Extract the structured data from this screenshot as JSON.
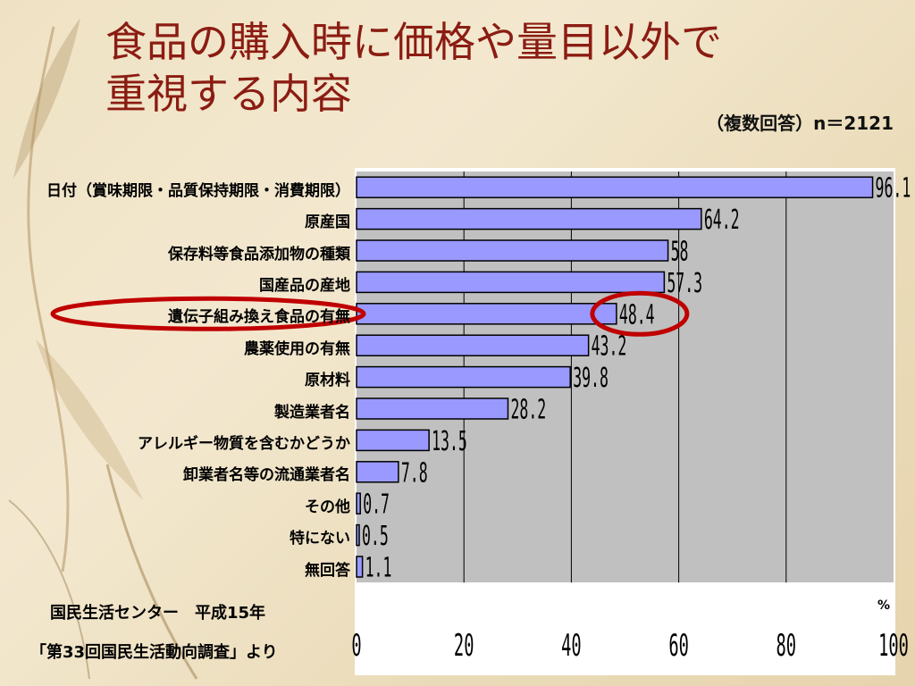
{
  "slide": {
    "title_line1": "食品の購入時に価格や量目以外で",
    "title_line2": "重視する内容",
    "note": "（複数回答）n＝2121",
    "source_line1": "国民生活センター　平成15年",
    "source_line2": "「第33回国民生活動向調査」より"
  },
  "chart_data": {
    "type": "bar",
    "orientation": "horizontal",
    "categories": [
      "日付（賞味期限・品質保持期限・消費期限）",
      "原産国",
      "保存料等食品添加物の種類",
      "国産品の産地",
      "遺伝子組み換え食品の有無",
      "農薬使用の有無",
      "原材料",
      "製造業者名",
      "アレルギー物質を含むかどうか",
      "卸業者名等の流通業者名",
      "その他",
      "特にない",
      "無回答"
    ],
    "values": [
      96.1,
      64.2,
      58,
      57.3,
      48.4,
      43.2,
      39.8,
      28.2,
      13.5,
      7.8,
      0.7,
      0.5,
      1.1
    ],
    "value_labels": [
      "96.1",
      "64.2",
      "58",
      "57.3",
      "48.4",
      "43.2",
      "39.8",
      "28.2",
      "13.5",
      "7.8",
      "0.7",
      "0.5",
      "1.1"
    ],
    "x_ticks": [
      "0",
      "20",
      "40",
      "60",
      "80",
      "100"
    ],
    "xlim": [
      0,
      100
    ],
    "unit_label": "%",
    "grid": true,
    "highlight_index": 4,
    "colors": {
      "bar": "#9999ff",
      "plot_bg": "#c0c0c0",
      "highlight": "#c00000",
      "title": "#8b1c12"
    }
  }
}
